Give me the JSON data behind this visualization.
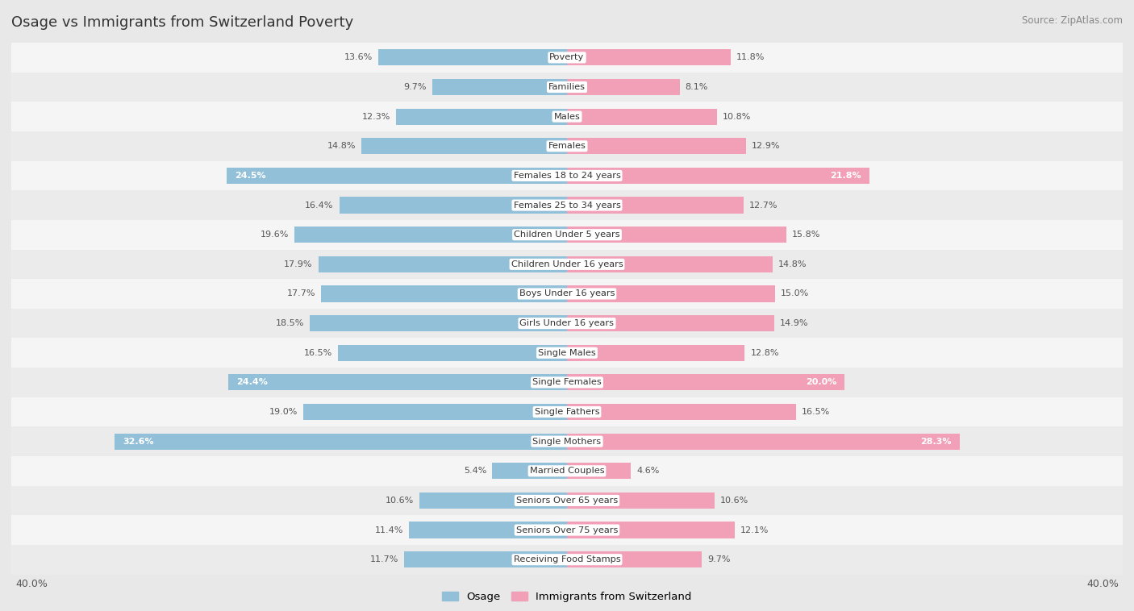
{
  "title": "Osage vs Immigrants from Switzerland Poverty",
  "source": "Source: ZipAtlas.com",
  "categories": [
    "Poverty",
    "Families",
    "Males",
    "Females",
    "Females 18 to 24 years",
    "Females 25 to 34 years",
    "Children Under 5 years",
    "Children Under 16 years",
    "Boys Under 16 years",
    "Girls Under 16 years",
    "Single Males",
    "Single Females",
    "Single Fathers",
    "Single Mothers",
    "Married Couples",
    "Seniors Over 65 years",
    "Seniors Over 75 years",
    "Receiving Food Stamps"
  ],
  "osage_values": [
    13.6,
    9.7,
    12.3,
    14.8,
    24.5,
    16.4,
    19.6,
    17.9,
    17.7,
    18.5,
    16.5,
    24.4,
    19.0,
    32.6,
    5.4,
    10.6,
    11.4,
    11.7
  ],
  "swiss_values": [
    11.8,
    8.1,
    10.8,
    12.9,
    21.8,
    12.7,
    15.8,
    14.8,
    15.0,
    14.9,
    12.8,
    20.0,
    16.5,
    28.3,
    4.6,
    10.6,
    12.1,
    9.7
  ],
  "osage_color": "#92c0d8",
  "swiss_color": "#f2a0b8",
  "osage_label": "Osage",
  "swiss_label": "Immigrants from Switzerland",
  "axis_limit": 40.0,
  "bg_color": "#e8e8e8",
  "row_color_odd": "#f5f5f5",
  "row_color_even": "#ebebeb",
  "text_dark": "#555555",
  "text_white": "#ffffff",
  "bold_threshold_osage": 20.0,
  "bold_threshold_swiss": 20.0
}
